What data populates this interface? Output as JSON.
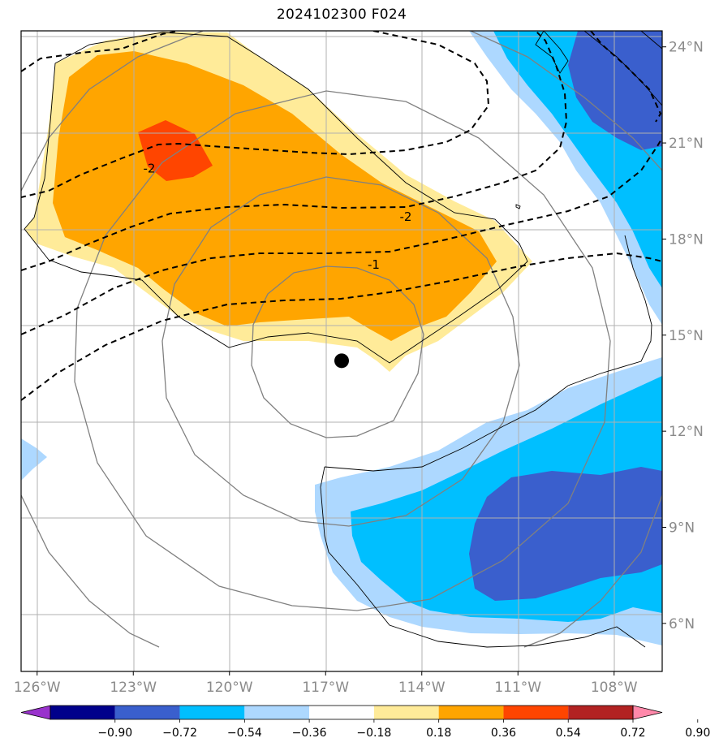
{
  "title": "2024102300 F024",
  "map": {
    "lon_range": [
      -126.5,
      -106.5
    ],
    "lat_range": [
      4.5,
      24.5
    ],
    "lon_ticks": [
      {
        "value": -126,
        "label": "126°W"
      },
      {
        "value": -123,
        "label": "123°W"
      },
      {
        "value": -120,
        "label": "120°W"
      },
      {
        "value": -117,
        "label": "117°W"
      },
      {
        "value": -114,
        "label": "114°W"
      },
      {
        "value": -111,
        "label": "111°W"
      },
      {
        "value": -108,
        "label": "108°W"
      }
    ],
    "lat_ticks": [
      {
        "value": 24,
        "label": "24°N"
      },
      {
        "value": 21,
        "label": "21°N"
      },
      {
        "value": 18,
        "label": "18°N"
      },
      {
        "value": 15,
        "label": "15°N"
      },
      {
        "value": 12,
        "label": "12°N"
      },
      {
        "value": 9,
        "label": "9°N"
      },
      {
        "value": 6,
        "label": "6°N"
      }
    ],
    "grid": true,
    "storm_center": {
      "lon": -116.5,
      "lat": 14.2
    },
    "contour_labels": [
      {
        "text": "-2",
        "lon": -122.5,
        "lat": 20.2
      },
      {
        "text": "-2",
        "lon": -114.5,
        "lat": 18.7
      },
      {
        "text": "-1",
        "lon": -115.5,
        "lat": 17.2
      }
    ]
  },
  "colorbar": {
    "levels": [
      "−0.90",
      "−0.72",
      "−0.54",
      "−0.36",
      "−0.18",
      "0.18",
      "0.36",
      "0.54",
      "0.72",
      "0.90"
    ],
    "colors": [
      "#9932cc",
      "#00008b",
      "#3a5fcd",
      "#00bfff",
      "#add8ff",
      "#ffffff",
      "#ffeb99",
      "#ffa500",
      "#ff4500",
      "#b22222",
      "#ff88aa"
    ],
    "extend": "both"
  }
}
